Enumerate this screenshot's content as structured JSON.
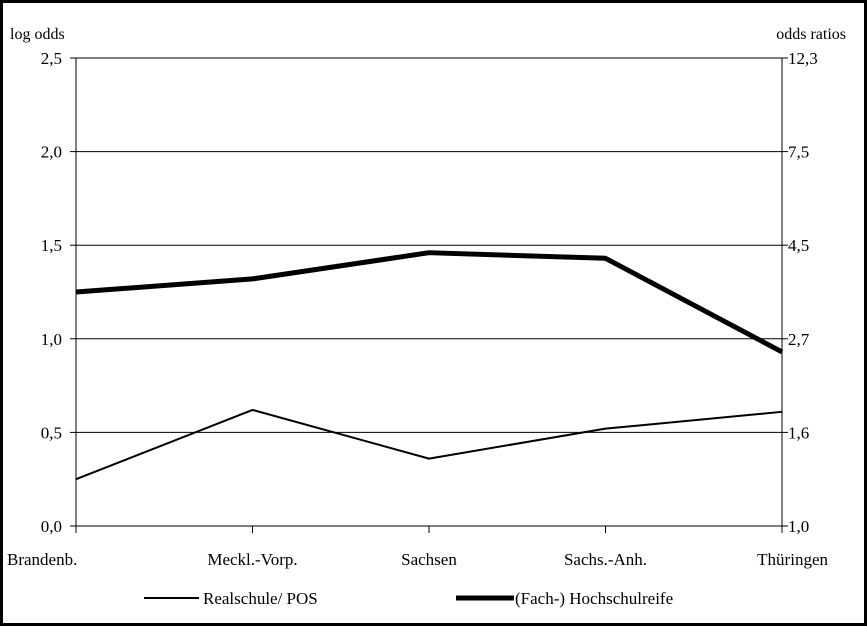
{
  "chart_data": {
    "type": "line",
    "categories": [
      "Brandenb.",
      "Meckl.-Vorp.",
      "Sachsen",
      "Sachs.-Anh.",
      "Thüringen"
    ],
    "series": [
      {
        "name": "Realschule/ POS",
        "values": [
          0.25,
          0.62,
          0.36,
          0.52,
          0.61
        ],
        "color": "#000000",
        "weight": "thin"
      },
      {
        "name": "(Fach-) Hochschulreife",
        "values": [
          1.25,
          1.32,
          1.46,
          1.43,
          0.93
        ],
        "color": "#000000",
        "weight": "thick"
      }
    ],
    "ylabel": "log odds",
    "y2label": "odds ratios",
    "ylim": [
      0,
      2.5
    ],
    "yticks": [
      "0,0",
      "0,5",
      "1,0",
      "1,5",
      "2,0",
      "2,5"
    ],
    "y2ticks": [
      "1,0",
      "1,6",
      "2,7",
      "4,5",
      "7,5",
      "12,3"
    ],
    "grid": true,
    "legend_position": "bottom"
  }
}
